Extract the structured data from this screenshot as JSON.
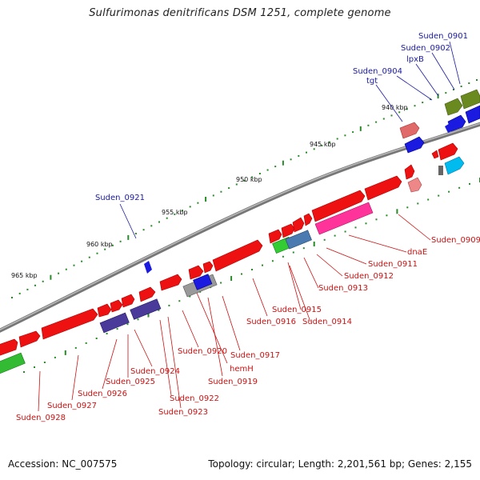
{
  "title": "Sulfurimonas denitrificans DSM 1251, complete genome",
  "footer": {
    "accession": "Accession: NC_007575",
    "topology": "Topology: circular; Length: 2,201,561 bp; Genes: 2,155"
  },
  "colors": {
    "red_gene": "#ee1111",
    "blue_label": "#1a1aa0",
    "red_label": "#cc1111",
    "backbone": "#888888",
    "tick": "#2a8a2a"
  },
  "kbp_labels": [
    "940 kbp",
    "945 kbp",
    "950 kbp",
    "955 kbp",
    "960 kbp",
    "965 kbp"
  ],
  "blue_labels": [
    "Suden_0901",
    "Suden_0902",
    "lpxB",
    "Suden_0904",
    "tgt",
    "Suden_0921"
  ],
  "red_labels": [
    "Suden_0909",
    "dnaE",
    "Suden_0911",
    "Suden_0912",
    "Suden_0913",
    "Suden_0915",
    "Suden_0914",
    "Suden_0916",
    "Suden_0917",
    "Suden_0920",
    "hemH",
    "Suden_0919",
    "Suden_0924",
    "Suden_0925",
    "Suden_0926",
    "Suden_0922",
    "Suden_0923",
    "Suden_0927",
    "Suden_0928"
  ]
}
